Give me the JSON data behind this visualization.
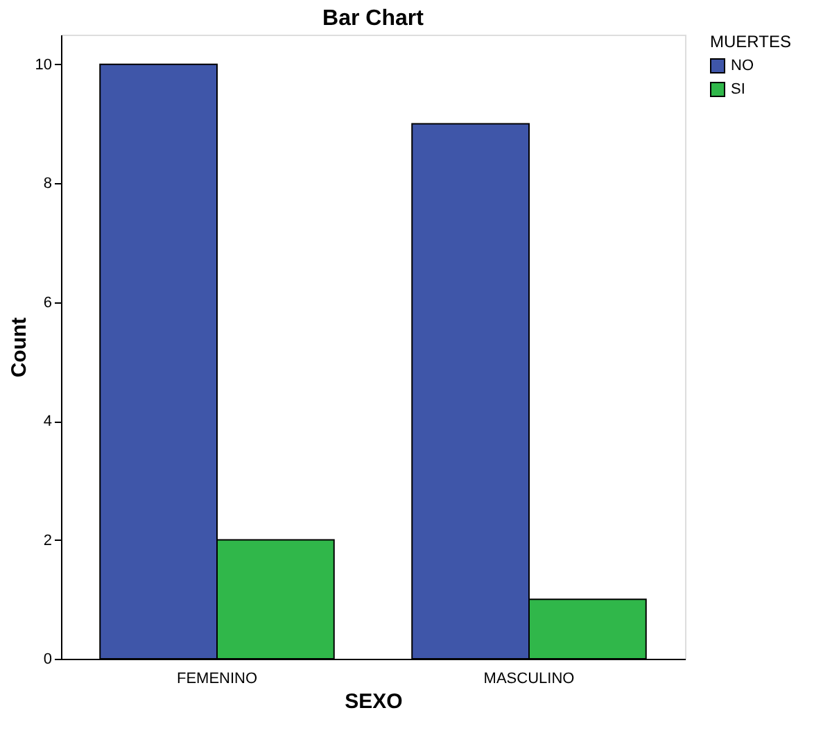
{
  "chart_data": {
    "type": "bar",
    "title": "Bar Chart",
    "xlabel": "SEXO",
    "ylabel": "Count",
    "legend_title": "MUERTES",
    "categories": [
      "FEMENINO",
      "MASCULINO"
    ],
    "series": [
      {
        "name": "NO",
        "color": "#3f56a9",
        "values": [
          10,
          9
        ]
      },
      {
        "name": "SI",
        "color": "#30b74a",
        "values": [
          2,
          1
        ]
      }
    ],
    "ylim": [
      0,
      10.5
    ],
    "yticks": [
      0,
      2,
      4,
      6,
      8,
      10
    ],
    "grid": false,
    "legend": "top right"
  }
}
